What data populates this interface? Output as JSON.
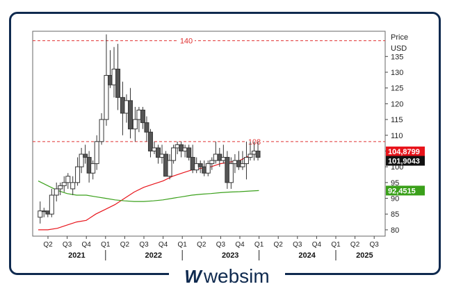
{
  "brand": {
    "name": "websim"
  },
  "chart_data": {
    "type": "candlestick",
    "unit_label": "Price",
    "currency_label": "USD",
    "ylim": [
      78,
      143
    ],
    "y_ticks": [
      80,
      85,
      90,
      95,
      100,
      105,
      110,
      115,
      120,
      125,
      130,
      135
    ],
    "quarter_ticks": [
      "Q2",
      "Q3",
      "Q4",
      "Q1",
      "Q2",
      "Q3",
      "Q4",
      "Q1",
      "Q2",
      "Q3",
      "Q4",
      "Q1",
      "Q2",
      "Q3",
      "Q4",
      "Q1",
      "Q2",
      "Q3"
    ],
    "year_labels": [
      "2021",
      "2022",
      "2023",
      "2024",
      "2025"
    ],
    "year_label_quarter_index": [
      1.5,
      5.5,
      9.5,
      13.5,
      16.5
    ],
    "year_separator_quarter_index": [
      3,
      7,
      11,
      15
    ],
    "hlines": [
      {
        "value": 140,
        "label": "140",
        "color": "#e03030"
      },
      {
        "value": 108,
        "label": "108",
        "color": "#e03030"
      }
    ],
    "badges": [
      {
        "value": 104.8799,
        "text": "104,8799",
        "bg": "#e8141b",
        "fg": "#ffffff"
      },
      {
        "value": 101.9043,
        "text": "101,9043",
        "bg": "#111111",
        "fg": "#ffffff"
      },
      {
        "value": 92.4515,
        "text": "92,4515",
        "bg": "#3aa01a",
        "fg": "#ffffff"
      }
    ],
    "candles": [
      [
        0.1,
        84,
        89,
        82,
        86
      ],
      [
        0.3,
        86,
        87,
        84,
        86
      ],
      [
        0.5,
        86,
        86,
        84,
        85
      ],
      [
        0.7,
        85,
        93,
        84,
        91
      ],
      [
        0.95,
        91,
        95,
        89,
        93
      ],
      [
        1.15,
        93,
        95,
        91,
        94
      ],
      [
        1.35,
        94,
        97,
        92,
        95
      ],
      [
        1.55,
        95,
        98,
        93,
        97
      ],
      [
        1.8,
        93,
        97,
        91,
        95
      ],
      [
        2.05,
        95,
        103,
        94,
        100
      ],
      [
        2.25,
        100,
        106,
        98,
        104
      ],
      [
        2.45,
        104,
        107,
        101,
        103
      ],
      [
        2.65,
        103,
        105,
        95,
        98
      ],
      [
        2.85,
        98,
        102,
        96,
        101
      ],
      [
        3.05,
        101,
        110,
        99,
        108
      ],
      [
        3.3,
        108,
        117,
        107,
        115
      ],
      [
        3.55,
        115,
        142,
        113,
        129
      ],
      [
        3.75,
        129,
        137,
        125,
        126
      ],
      [
        3.95,
        126,
        138,
        122,
        131
      ],
      [
        4.15,
        131,
        139,
        118,
        122
      ],
      [
        4.4,
        122,
        127,
        110,
        117
      ],
      [
        4.6,
        117,
        123,
        114,
        121
      ],
      [
        4.8,
        121,
        125,
        109,
        112
      ],
      [
        5.05,
        112,
        119,
        108,
        115
      ],
      [
        5.25,
        115,
        119,
        111,
        118
      ],
      [
        5.45,
        118,
        119,
        112,
        114
      ],
      [
        5.65,
        114,
        116,
        108,
        111
      ],
      [
        5.85,
        111,
        112,
        103,
        105
      ],
      [
        6.05,
        105,
        108,
        104,
        106
      ],
      [
        6.25,
        106,
        107,
        101,
        103
      ],
      [
        6.45,
        103,
        107,
        101,
        104
      ],
      [
        6.65,
        104,
        105,
        97,
        97
      ],
      [
        6.85,
        97,
        104,
        96,
        102
      ],
      [
        7.05,
        102,
        107,
        101,
        106
      ],
      [
        7.25,
        106,
        108,
        104,
        107
      ],
      [
        7.45,
        107,
        108,
        103,
        105
      ],
      [
        7.65,
        105,
        107,
        103,
        106
      ],
      [
        7.85,
        106,
        107,
        102,
        103
      ],
      [
        8.05,
        103,
        107,
        98,
        99
      ],
      [
        8.25,
        99,
        103,
        98,
        101
      ],
      [
        8.45,
        101,
        102,
        98,
        100
      ],
      [
        8.65,
        100,
        102,
        97,
        98
      ],
      [
        8.85,
        98,
        102,
        97,
        101
      ],
      [
        9.05,
        101,
        103,
        99,
        102
      ],
      [
        9.25,
        102,
        108,
        101,
        104
      ],
      [
        9.45,
        104,
        106,
        100,
        102
      ],
      [
        9.65,
        102,
        107,
        101,
        103
      ],
      [
        9.85,
        103,
        105,
        93,
        95
      ],
      [
        10.05,
        95,
        103,
        93,
        101
      ],
      [
        10.25,
        101,
        104,
        98,
        102
      ],
      [
        10.45,
        102,
        105,
        99,
        100
      ],
      [
        10.65,
        100,
        105,
        99,
        101
      ],
      [
        10.85,
        101,
        108,
        96,
        103
      ],
      [
        11.05,
        103,
        108,
        102,
        104
      ],
      [
        11.25,
        104,
        108,
        102,
        105
      ],
      [
        11.45,
        105,
        108,
        102,
        103
      ]
    ],
    "series": [
      {
        "name": "",
        "color": "#e8141b",
        "points": [
          [
            0.0,
            80.0
          ],
          [
            0.5,
            80.0
          ],
          [
            1.0,
            80.5
          ],
          [
            1.5,
            81.5
          ],
          [
            2.0,
            82.5
          ],
          [
            2.5,
            83.0
          ],
          [
            3.0,
            85.0
          ],
          [
            3.5,
            86.5
          ],
          [
            4.0,
            88.0
          ],
          [
            4.5,
            90.0
          ],
          [
            5.0,
            92.0
          ],
          [
            5.5,
            93.5
          ],
          [
            6.0,
            94.5
          ],
          [
            6.5,
            95.5
          ],
          [
            7.0,
            97.0
          ],
          [
            7.5,
            98.0
          ],
          [
            8.0,
            99.0
          ],
          [
            8.5,
            99.5
          ],
          [
            9.0,
            100.0
          ],
          [
            9.5,
            101.0
          ],
          [
            10.0,
            101.5
          ],
          [
            10.5,
            102.0
          ],
          [
            11.0,
            103.5
          ],
          [
            11.5,
            104.8799
          ]
        ]
      },
      {
        "name": "",
        "color": "#3aa01a",
        "points": [
          [
            0.0,
            95.5
          ],
          [
            0.5,
            94.0
          ],
          [
            1.0,
            92.5
          ],
          [
            1.5,
            91.5
          ],
          [
            2.0,
            91.0
          ],
          [
            2.5,
            91.0
          ],
          [
            3.0,
            90.5
          ],
          [
            3.5,
            90.0
          ],
          [
            4.0,
            89.5
          ],
          [
            4.5,
            89.2
          ],
          [
            5.0,
            89.0
          ],
          [
            5.5,
            89.0
          ],
          [
            6.0,
            89.2
          ],
          [
            6.5,
            89.5
          ],
          [
            7.0,
            90.0
          ],
          [
            7.5,
            90.5
          ],
          [
            8.0,
            91.0
          ],
          [
            8.5,
            91.3
          ],
          [
            9.0,
            91.5
          ],
          [
            9.5,
            91.8
          ],
          [
            10.0,
            92.0
          ],
          [
            10.5,
            92.1
          ],
          [
            11.0,
            92.3
          ],
          [
            11.5,
            92.4515
          ]
        ]
      }
    ]
  }
}
